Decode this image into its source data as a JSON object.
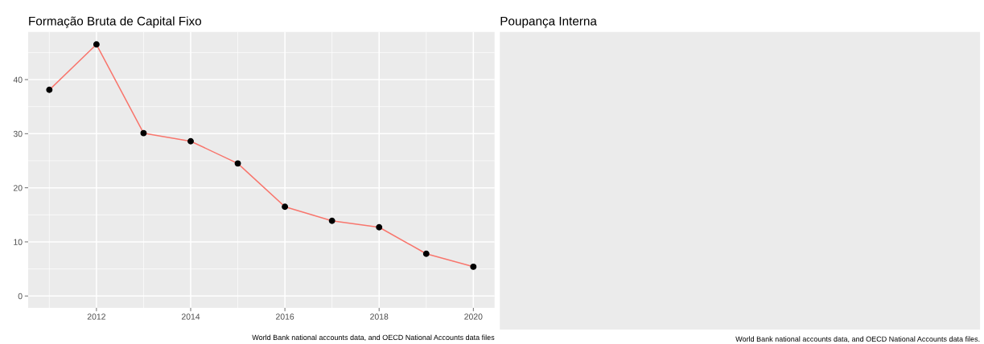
{
  "chart_data": [
    {
      "type": "line",
      "title": "Formação Bruta de Capital Fixo",
      "x": [
        2011,
        2012,
        2013,
        2014,
        2015,
        2016,
        2017,
        2018,
        2019,
        2020
      ],
      "series": [
        {
          "color": "#f8766d",
          "values": [
            38.1,
            46.5,
            30.1,
            28.6,
            24.5,
            16.5,
            13.9,
            12.7,
            7.8,
            5.4
          ]
        }
      ],
      "marker": "circle",
      "line_style": "solid",
      "xlim": [
        2010.55,
        2020.45
      ],
      "xticks": [
        2012,
        2014,
        2016,
        2018,
        2020
      ],
      "ylim": [
        -2.2,
        48.8
      ],
      "yticks": [
        0,
        10,
        20,
        30,
        40
      ],
      "grid": true,
      "annotations": [
        "World Bank national accounts data, and OECD National Accounts data files"
      ]
    },
    {
      "type": "other",
      "title": "Poupança Interna",
      "annotations": [
        "World Bank national accounts data, and OECD National Accounts data files."
      ]
    }
  ]
}
